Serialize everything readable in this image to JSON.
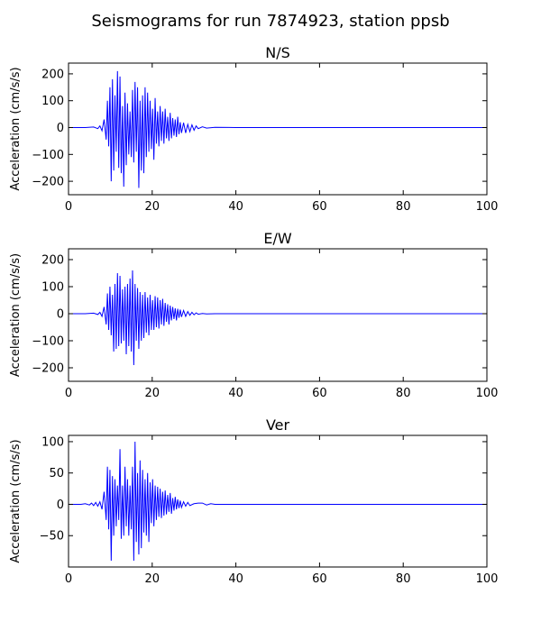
{
  "figure": {
    "suptitle": "Seismograms for run 7874923, station ppsb"
  },
  "chart_data": [
    {
      "type": "line",
      "title": "N/S",
      "ylabel": "Acceleration (cm/s/s)",
      "xlim": [
        0,
        100
      ],
      "ylim": [
        -250,
        240
      ],
      "xticks": [
        0,
        20,
        40,
        60,
        80,
        100
      ],
      "yticks": [
        -200,
        -100,
        0,
        100,
        200
      ],
      "color": "#0000ff",
      "series": [
        {
          "x": [
            0,
            4,
            6,
            7,
            7.5,
            8,
            8.5,
            9,
            9.3,
            9.6,
            9.9,
            10.2,
            10.5,
            10.8,
            11.1,
            11.4,
            11.7,
            12.0,
            12.3,
            12.6,
            12.9,
            13.2,
            13.5,
            13.8,
            14.1,
            14.4,
            14.7,
            15.0,
            15.3,
            15.6,
            15.9,
            16.2,
            16.5,
            16.8,
            17.1,
            17.4,
            17.7,
            18.0,
            18.3,
            18.6,
            18.9,
            19.2,
            19.5,
            19.8,
            20.1,
            20.4,
            20.7,
            21.0,
            21.3,
            21.6,
            21.9,
            22.2,
            22.5,
            22.8,
            23.1,
            23.4,
            23.7,
            24.0,
            24.3,
            24.6,
            24.9,
            25.2,
            25.5,
            25.8,
            26.1,
            26.4,
            26.7,
            27.0,
            27.5,
            28,
            28.5,
            29,
            29.5,
            30,
            30.5,
            31,
            32,
            33,
            35,
            40,
            100
          ],
          "y": [
            0,
            0,
            2,
            -4,
            6,
            -12,
            30,
            -45,
            100,
            -70,
            150,
            -200,
            180,
            -160,
            120,
            -90,
            210,
            -150,
            190,
            -170,
            80,
            -220,
            130,
            -140,
            90,
            -100,
            60,
            -110,
            140,
            -130,
            170,
            -90,
            150,
            -225,
            100,
            -160,
            120,
            -170,
            150,
            -110,
            130,
            -90,
            100,
            -80,
            70,
            -120,
            110,
            -60,
            60,
            -70,
            80,
            -50,
            60,
            -60,
            70,
            -40,
            40,
            -50,
            55,
            -40,
            35,
            -30,
            30,
            -35,
            40,
            -25,
            20,
            -20,
            18,
            -20,
            12,
            -15,
            10,
            -10,
            6,
            -4,
            3,
            -2,
            1,
            0,
            0
          ]
        }
      ]
    },
    {
      "type": "line",
      "title": "E/W",
      "ylabel": "Acceleration (cm/s/s)",
      "xlim": [
        0,
        100
      ],
      "ylim": [
        -250,
        240
      ],
      "xticks": [
        0,
        20,
        40,
        60,
        80,
        100
      ],
      "yticks": [
        -200,
        -100,
        0,
        100,
        200
      ],
      "color": "#0000ff",
      "series": [
        {
          "x": [
            0,
            4,
            6,
            7,
            7.5,
            8,
            8.5,
            9,
            9.3,
            9.6,
            9.9,
            10.2,
            10.5,
            10.8,
            11.1,
            11.4,
            11.7,
            12.0,
            12.3,
            12.6,
            12.9,
            13.2,
            13.5,
            13.8,
            14.1,
            14.4,
            14.7,
            15.0,
            15.3,
            15.6,
            15.9,
            16.2,
            16.5,
            16.8,
            17.1,
            17.4,
            17.7,
            18.0,
            18.3,
            18.6,
            18.9,
            19.2,
            19.5,
            19.8,
            20.1,
            20.4,
            20.7,
            21.0,
            21.3,
            21.6,
            21.9,
            22.2,
            22.5,
            22.8,
            23.1,
            23.4,
            23.7,
            24.0,
            24.3,
            24.6,
            24.9,
            25.2,
            25.5,
            25.8,
            26.1,
            26.4,
            26.7,
            27.0,
            27.5,
            28,
            28.5,
            29,
            29.5,
            30,
            30.5,
            31,
            32,
            33,
            35,
            40,
            100
          ],
          "y": [
            0,
            0,
            2,
            -3,
            5,
            -10,
            25,
            -40,
            75,
            -60,
            100,
            -80,
            70,
            -140,
            110,
            -130,
            150,
            -120,
            140,
            -110,
            90,
            -100,
            100,
            -150,
            110,
            -120,
            130,
            -140,
            160,
            -190,
            110,
            -100,
            95,
            -130,
            80,
            -100,
            70,
            -90,
            80,
            -70,
            60,
            -80,
            70,
            -60,
            50,
            -60,
            65,
            -50,
            60,
            -55,
            50,
            -40,
            55,
            -45,
            40,
            -30,
            35,
            -40,
            30,
            -25,
            25,
            -20,
            20,
            -25,
            18,
            -15,
            15,
            -12,
            12,
            -10,
            8,
            -6,
            5,
            -4,
            3,
            -2,
            1,
            -1,
            0,
            0,
            0
          ]
        }
      ]
    },
    {
      "type": "line",
      "title": "Ver",
      "ylabel": "Acceleration (cm/s/s)",
      "xlim": [
        0,
        100
      ],
      "ylim": [
        -100,
        110
      ],
      "xticks": [
        0,
        20,
        40,
        60,
        80,
        100
      ],
      "yticks": [
        -50,
        0,
        50,
        100
      ],
      "color": "#0000ff",
      "series": [
        {
          "x": [
            0,
            3,
            4,
            5,
            5.5,
            6,
            6.5,
            7,
            7.5,
            8,
            8.5,
            9,
            9.3,
            9.6,
            9.9,
            10.2,
            10.5,
            10.8,
            11.1,
            11.4,
            11.7,
            12.0,
            12.3,
            12.6,
            12.9,
            13.2,
            13.5,
            13.8,
            14.1,
            14.4,
            14.7,
            15.0,
            15.3,
            15.6,
            15.9,
            16.2,
            16.5,
            16.8,
            17.1,
            17.4,
            17.7,
            18.0,
            18.3,
            18.6,
            18.9,
            19.2,
            19.5,
            19.8,
            20.1,
            20.4,
            20.7,
            21.0,
            21.3,
            21.6,
            21.9,
            22.2,
            22.5,
            22.8,
            23.1,
            23.4,
            23.7,
            24.0,
            24.3,
            24.6,
            24.9,
            25.2,
            25.5,
            25.8,
            26.1,
            26.4,
            26.7,
            27.0,
            27.5,
            28,
            28.5,
            29,
            30,
            31,
            32,
            33,
            34,
            35,
            37,
            40,
            100
          ],
          "y": [
            0,
            0,
            1,
            -1,
            2,
            -2,
            3,
            -3,
            4,
            -8,
            20,
            -25,
            60,
            -40,
            55,
            -90,
            45,
            -50,
            40,
            -35,
            30,
            -25,
            88,
            -55,
            30,
            -50,
            60,
            -35,
            40,
            -50,
            30,
            -40,
            60,
            -90,
            100,
            -60,
            50,
            -80,
            70,
            -70,
            55,
            -45,
            40,
            -50,
            50,
            -60,
            35,
            -30,
            40,
            -35,
            30,
            -25,
            28,
            -20,
            25,
            -22,
            20,
            -18,
            22,
            -16,
            15,
            -12,
            18,
            -15,
            10,
            -10,
            12,
            -8,
            8,
            -6,
            6,
            -5,
            4,
            -3,
            3,
            -2,
            1,
            2,
            2,
            -1,
            1,
            0,
            0,
            0,
            0
          ]
        }
      ]
    }
  ]
}
